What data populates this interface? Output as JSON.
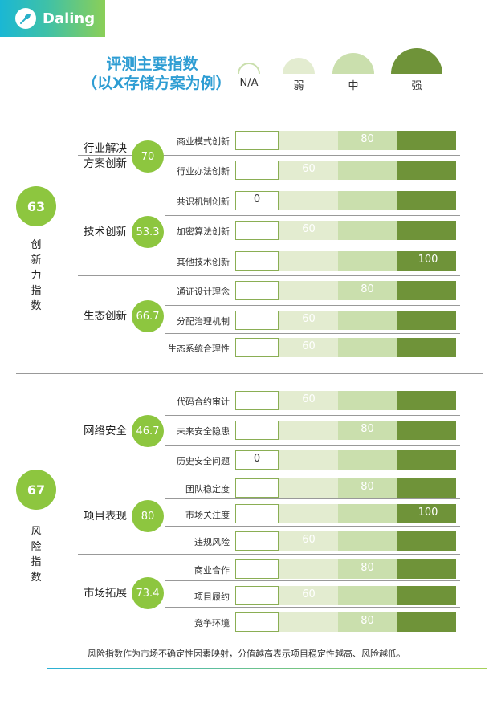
{
  "brand": {
    "name": "Daling"
  },
  "header": {
    "title_line1": "评测主要指数",
    "title_line2": "（以X存储方案为例）"
  },
  "legend": [
    {
      "label": "N/A",
      "level": "na"
    },
    {
      "label": "弱",
      "level": "weak"
    },
    {
      "label": "中",
      "level": "mid"
    },
    {
      "label": "强",
      "level": "strong"
    }
  ],
  "colors": {
    "na_border": "#8aae54",
    "weak": "#e3ecd0",
    "mid": "#cadfad",
    "strong": "#6f9339",
    "circle": "#8dc63f",
    "title": "#2e9dd3"
  },
  "chart_data": {
    "type": "table",
    "levels": [
      "N/A",
      "弱",
      "中",
      "强"
    ],
    "level_values": {
      "0": "N/A",
      "60": "弱",
      "80": "中",
      "100": "强"
    },
    "groups": [
      {
        "name": "创新力指数",
        "score": "63",
        "categories": [
          {
            "name_lines": [
              "行业解决",
              "方案创新"
            ],
            "score": "70",
            "items": [
              {
                "name": "商业模式创新",
                "value": 80
              },
              {
                "name": "行业办法创新",
                "value": 60
              }
            ]
          },
          {
            "name_lines": [
              "技术创新"
            ],
            "score": "53.3",
            "items": [
              {
                "name": "共识机制创新",
                "value": 0
              },
              {
                "name": "加密算法创新",
                "value": 60
              },
              {
                "name": "其他技术创新",
                "value": 100
              }
            ]
          },
          {
            "name_lines": [
              "生态创新"
            ],
            "score": "66.7",
            "items": [
              {
                "name": "通证设计理念",
                "value": 80
              },
              {
                "name": "分配治理机制",
                "value": 60
              },
              {
                "name": "生态系统合理性",
                "value": 60
              }
            ]
          }
        ]
      },
      {
        "name": "风险指数",
        "score": "67",
        "categories": [
          {
            "name_lines": [
              "网络安全"
            ],
            "score": "46.7",
            "items": [
              {
                "name": "代码合约审计",
                "value": 60
              },
              {
                "name": "未来安全隐患",
                "value": 80
              },
              {
                "name": "历史安全问题",
                "value": 0
              }
            ]
          },
          {
            "name_lines": [
              "项目表现"
            ],
            "score": "80",
            "items": [
              {
                "name": "团队稳定度",
                "value": 80
              },
              {
                "name": "市场关注度",
                "value": 100
              },
              {
                "name": "违规风险",
                "value": 60
              }
            ]
          },
          {
            "name_lines": [
              "市场拓展"
            ],
            "score": "73.4",
            "items": [
              {
                "name": "商业合作",
                "value": 80
              },
              {
                "name": "项目履约",
                "value": 60
              },
              {
                "name": "竞争环境",
                "value": 80
              }
            ]
          }
        ]
      }
    ]
  },
  "footnote": "风险指数作为市场不确定性因素映射，分值越高表示项目稳定性越高、风险越低。"
}
